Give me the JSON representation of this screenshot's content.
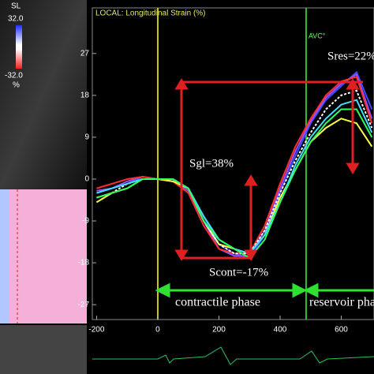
{
  "chart_data": {
    "type": "line",
    "title": "LOCAL: Longitudinal Strain (%)",
    "colorbar": {
      "label": "SL",
      "max": "32.0",
      "min": "-32.0",
      "unit": "%"
    },
    "marker": "AVC°",
    "annotations": [
      "Sgl=38%",
      "Scont=-17%",
      "Sres=22%"
    ],
    "phases": [
      "contractile phase",
      "reservoir phase"
    ],
    "x": [
      -200,
      -150,
      -100,
      -50,
      0,
      50,
      100,
      150,
      200,
      250,
      300,
      350,
      400,
      450,
      500,
      550,
      600,
      650,
      700
    ],
    "series": [
      {
        "color": "#3a4dff",
        "values": [
          -3,
          -2,
          -1,
          0.5,
          0,
          -0.5,
          -2,
          -8,
          -14,
          -16,
          -17,
          -12,
          -3,
          5,
          12,
          17,
          20,
          23,
          15
        ]
      },
      {
        "color": "#9b4dff",
        "values": [
          -2.5,
          -2,
          -0.5,
          0.5,
          0,
          -0.5,
          -2.5,
          -9,
          -15,
          -16.5,
          -16.5,
          -11,
          -2,
          6,
          12.5,
          17.5,
          20.5,
          22.5,
          13
        ]
      },
      {
        "color": "#ff3030",
        "values": [
          -2,
          -1,
          0,
          0.5,
          0,
          -0.5,
          -3,
          -10,
          -15,
          -16,
          -16,
          -10,
          -1,
          7,
          13,
          18,
          21,
          22,
          12
        ]
      },
      {
        "color": "#ffff40",
        "values": [
          -5,
          -3,
          -2,
          0,
          0,
          -0.5,
          -2,
          -9,
          -14,
          -15,
          -16,
          -12,
          -4,
          2,
          8,
          11,
          13,
          12,
          7
        ]
      },
      {
        "color": "#ffffff",
        "values": [
          -4,
          -3,
          -1,
          0,
          0,
          0,
          -2,
          -9,
          -14,
          -16,
          -16,
          -11,
          -3,
          4,
          10,
          15,
          18,
          19,
          11
        ]
      },
      {
        "color": "#40e0ff",
        "values": [
          -3,
          -2,
          -1,
          0,
          0,
          0,
          -2,
          -8,
          -13,
          -15,
          -16,
          -12,
          -5,
          3,
          9,
          13,
          16,
          17,
          10
        ]
      },
      {
        "color": "#30ff60",
        "values": [
          -4,
          -3,
          -2,
          0,
          0,
          0,
          -2,
          -9,
          -13,
          -15,
          -17,
          -13,
          -5,
          2,
          8,
          12,
          15,
          15,
          9
        ]
      }
    ],
    "xlim": [
      -214,
      707
    ],
    "ylim": [
      -30.2,
      36.8
    ],
    "xticks": [
      -200,
      0,
      200,
      400,
      600
    ],
    "yticks": [
      27,
      18,
      9,
      0,
      -9,
      -18,
      -27
    ],
    "vlines": [
      {
        "value": 0,
        "color": "#c8c820"
      },
      {
        "value": 485,
        "color": "#30c030"
      }
    ]
  }
}
